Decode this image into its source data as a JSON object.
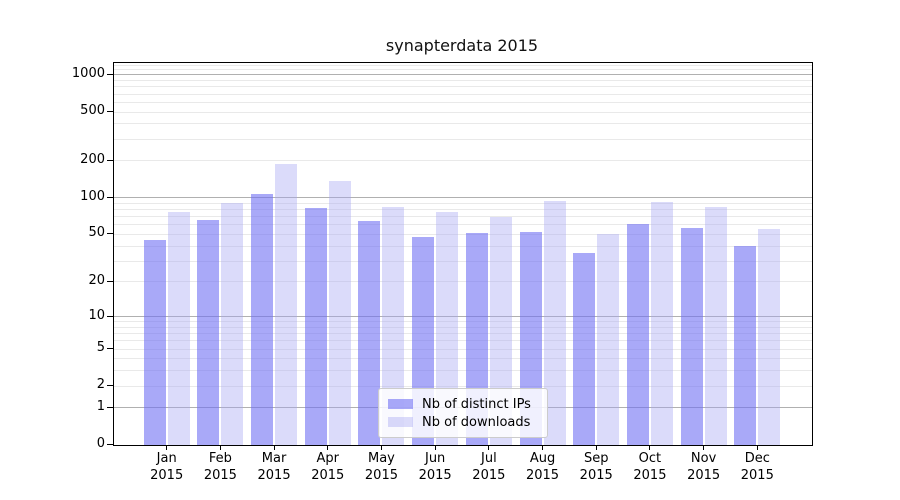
{
  "title": "synapterdata 2015",
  "chart_data": {
    "type": "bar",
    "title": "synapterdata 2015",
    "scale": "log1p",
    "ylim": [
      0,
      1250
    ],
    "grid": "on",
    "legend_position": "lower center",
    "categories": [
      "Jan",
      "Feb",
      "Mar",
      "Apr",
      "May",
      "Jun",
      "Jul",
      "Aug",
      "Sep",
      "Oct",
      "Nov",
      "Dec"
    ],
    "year_label": "2015",
    "yticks": [
      0,
      1,
      2,
      5,
      10,
      20,
      50,
      100,
      200,
      500,
      1000
    ],
    "series": [
      {
        "name": "Nb of distinct IPs",
        "color": "rgba(112,112,243,0.60)",
        "values": [
          45,
          66,
          108,
          82,
          65,
          48,
          51,
          52,
          35,
          61,
          57,
          40
        ]
      },
      {
        "name": "Nb of downloads",
        "color": "rgba(165,165,242,0.40)",
        "values": [
          76,
          90,
          190,
          137,
          84,
          77,
          70,
          95,
          50,
          92,
          84,
          55
        ]
      }
    ],
    "colors": {
      "major_grid": "#b0b0b0",
      "minor_grid": "#e9e9e9",
      "axis": "#000000",
      "legend_border": "#cccccc"
    }
  }
}
